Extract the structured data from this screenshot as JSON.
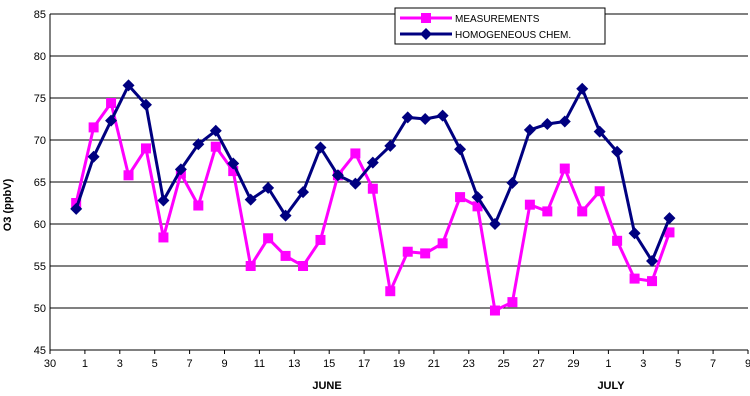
{
  "chart_data": {
    "type": "line",
    "ylabel": "O3 (ppbV)",
    "ylim": [
      45,
      85
    ],
    "y_ticks": [
      "45",
      "50",
      "55",
      "60",
      "65",
      "70",
      "75",
      "80",
      "85"
    ],
    "x_tick_labels": [
      "30",
      "1",
      "3",
      "5",
      "7",
      "9",
      "11",
      "13",
      "15",
      "17",
      "19",
      "21",
      "23",
      "25",
      "27",
      "29",
      "1",
      "3",
      "5",
      "7",
      "9"
    ],
    "month_labels": [
      "JUNE",
      "JULY"
    ],
    "grid": "horizontal",
    "legend_position": "top-right",
    "series": [
      {
        "name": "MEASUREMENTS",
        "color": "#FF00FF",
        "marker": "square",
        "x": [
          1.5,
          2.5,
          3.5,
          4.5,
          5.5,
          6.5,
          7.5,
          8.5,
          9.5,
          10.5,
          11.5,
          12.5,
          13.5,
          14.5,
          15.5,
          16.5,
          17.5,
          18.5,
          19.5,
          20.5,
          21.5,
          22.5,
          23.5,
          24.5,
          25.5,
          26.5,
          27.5,
          28.5,
          29.5,
          30.5,
          31.5,
          32.5,
          33.5,
          34.5,
          35.5
        ],
        "values": [
          62.5,
          71.5,
          74.4,
          65.8,
          69.0,
          58.4,
          66.0,
          62.2,
          69.2,
          66.3,
          55.0,
          58.3,
          56.2,
          55.0,
          58.1,
          65.8,
          68.4,
          64.2,
          52.0,
          56.7,
          56.5,
          57.7,
          63.2,
          62.1,
          49.7,
          50.7,
          62.3,
          61.5,
          66.6,
          61.5,
          63.9,
          58.0,
          53.5,
          53.2,
          59.0
        ]
      },
      {
        "name": "HOMOGENEOUS CHEM.",
        "color": "#000080",
        "marker": "diamond",
        "x": [
          1.5,
          2.5,
          3.5,
          4.5,
          5.5,
          6.5,
          7.5,
          8.5,
          9.5,
          10.5,
          11.5,
          12.5,
          13.5,
          14.5,
          15.5,
          16.5,
          17.5,
          18.5,
          19.5,
          20.5,
          21.5,
          22.5,
          23.5,
          24.5,
          25.5,
          26.5,
          27.5,
          28.5,
          29.5,
          30.5,
          31.5,
          32.5,
          33.5,
          34.5,
          35.5
        ],
        "values": [
          61.8,
          68.0,
          72.3,
          76.5,
          74.2,
          62.8,
          66.5,
          69.5,
          71.1,
          67.2,
          62.9,
          64.3,
          61.0,
          63.8,
          69.1,
          65.8,
          64.8,
          67.3,
          69.3,
          72.7,
          72.5,
          72.9,
          68.9,
          63.2,
          60.0,
          64.9,
          71.2,
          71.9,
          72.2,
          76.1,
          71.0,
          68.6,
          58.9,
          55.6,
          60.7
        ]
      }
    ]
  }
}
